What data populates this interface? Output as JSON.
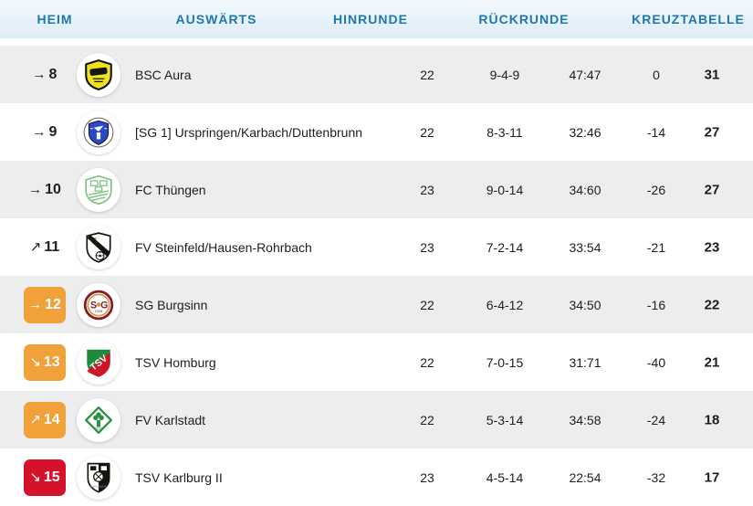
{
  "header": {
    "tabs": [
      {
        "id": "heim",
        "label": "HEIM"
      },
      {
        "id": "auswaerts",
        "label": "AUSWÄRTS"
      },
      {
        "id": "hinrunde",
        "label": "HINRUNDE"
      },
      {
        "id": "rueckrunde",
        "label": "RÜCKRUNDE"
      },
      {
        "id": "kreuztabelle",
        "label": "KREUZTABELLE"
      }
    ]
  },
  "colors": {
    "tab_text_blue": "#2077AE",
    "tabbar_background": "#E6F2F9",
    "row_alt_gray": "#EDEDED",
    "badge_orange": "#F0A13A",
    "badge_red": "#D6112B",
    "text_dark": "#1D1D1B"
  },
  "table": {
    "rows": [
      {
        "position": "8",
        "trend": "→",
        "badge": "none",
        "logo": "bsc-aura-crest",
        "team": "BSC Aura",
        "spiele": "22",
        "bilanz": "9-4-9",
        "tore": "47:47",
        "differenz": "0",
        "punkte": "31"
      },
      {
        "position": "9",
        "trend": "→",
        "badge": "none",
        "logo": "urspringen-crest",
        "team": "[SG 1] Urspringen/Karbach/Duttenbrunn",
        "spiele": "22",
        "bilanz": "8-3-11",
        "tore": "32:46",
        "differenz": "-14",
        "punkte": "27"
      },
      {
        "position": "10",
        "trend": "→",
        "badge": "none",
        "logo": "thuengen-crest",
        "team": "FC Thüngen",
        "spiele": "23",
        "bilanz": "9-0-14",
        "tore": "34:60",
        "differenz": "-26",
        "punkte": "27"
      },
      {
        "position": "11",
        "trend": "↗",
        "badge": "none",
        "logo": "steinfeld-crest",
        "team": "FV Steinfeld/Hausen-Rohrbach",
        "spiele": "23",
        "bilanz": "7-2-14",
        "tore": "33:54",
        "differenz": "-21",
        "punkte": "23"
      },
      {
        "position": "12",
        "trend": "→",
        "badge": "orange",
        "logo": "burgsinn-crest",
        "team": "SG Burgsinn",
        "spiele": "22",
        "bilanz": "6-4-12",
        "tore": "34:50",
        "differenz": "-16",
        "punkte": "22"
      },
      {
        "position": "13",
        "trend": "↘",
        "badge": "orange",
        "logo": "homburg-crest",
        "team": "TSV Homburg",
        "spiele": "22",
        "bilanz": "7-0-15",
        "tore": "31:71",
        "differenz": "-40",
        "punkte": "21"
      },
      {
        "position": "14",
        "trend": "↗",
        "badge": "orange",
        "logo": "karlstadt-crest",
        "team": "FV Karlstadt",
        "spiele": "22",
        "bilanz": "5-3-14",
        "tore": "34:58",
        "differenz": "-24",
        "punkte": "18"
      },
      {
        "position": "15",
        "trend": "↘",
        "badge": "red",
        "logo": "karlburg-crest",
        "team": "TSV Karlburg II",
        "spiele": "23",
        "bilanz": "4-5-14",
        "tore": "22:54",
        "differenz": "-32",
        "punkte": "17"
      }
    ]
  }
}
